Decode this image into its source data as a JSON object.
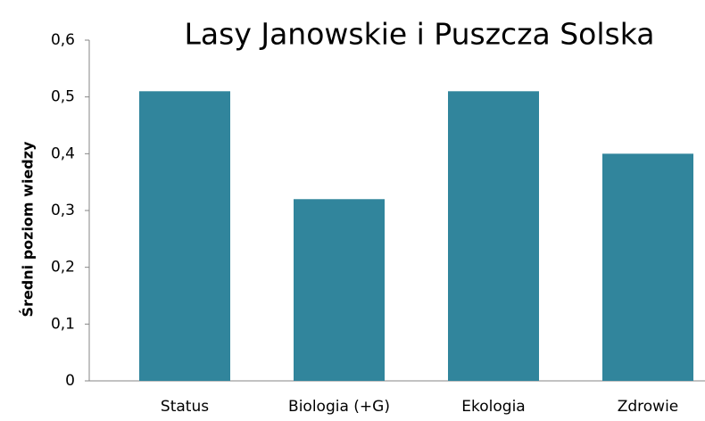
{
  "chart_data": {
    "type": "bar",
    "title": "Lasy Janowskie i Puszcza Solska",
    "y_label": "Średni poziom wiedzy",
    "categories": [
      "Status",
      "Biologia (+G)",
      "Ekologia",
      "Zdrowie"
    ],
    "values": [
      0.51,
      0.32,
      0.51,
      0.4
    ],
    "color": "#31859c",
    "ylim": [
      0,
      0.6
    ],
    "yticks": [
      0,
      {
        "value": 0.1,
        "label": "0,1"
      },
      {
        "value": 0.2,
        "label": "0,2"
      },
      {
        "value": 0.3,
        "label": "0,3"
      },
      {
        "value": 0.4,
        "label": "0,4"
      },
      {
        "value": 0.5,
        "label": "0,5"
      },
      {
        "value": 0.6,
        "label": "0,6"
      }
    ],
    "grid": false
  }
}
